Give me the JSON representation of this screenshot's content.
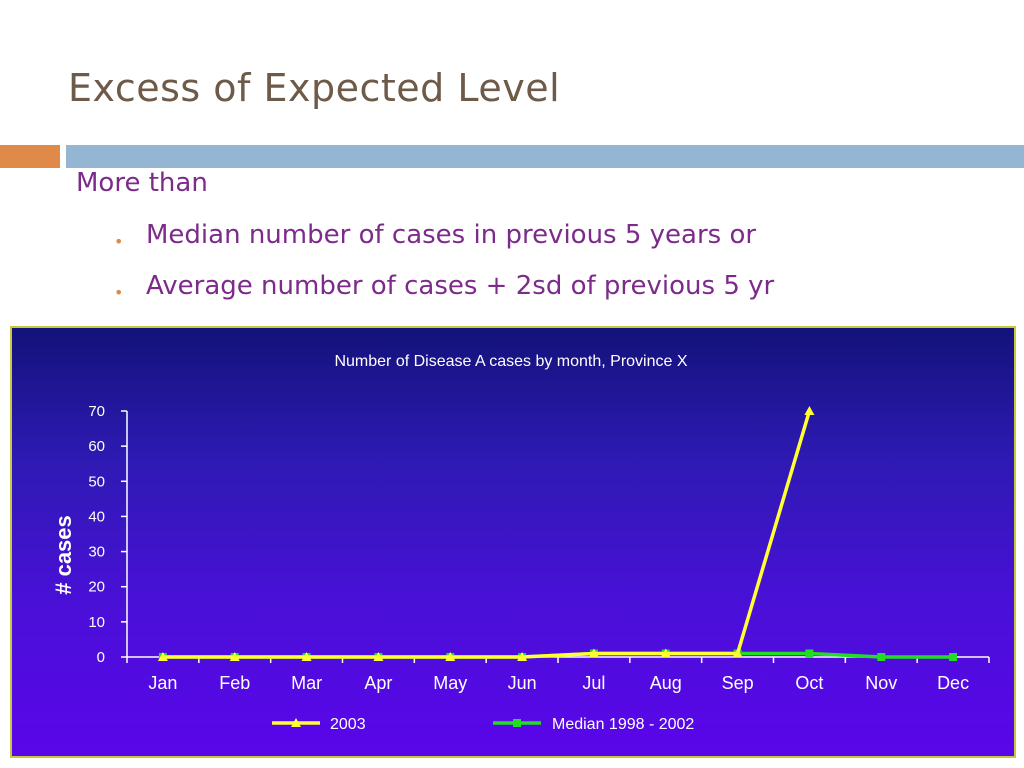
{
  "slide": {
    "title": "Excess of Expected Level",
    "lead": "More than",
    "bullets": [
      "Median number of cases in previous 5 years or",
      "Average number of cases + 2sd of previous 5 yr"
    ]
  },
  "chart_data": {
    "type": "line",
    "title": "Number of Disease A cases by month, Province X",
    "xlabel": "",
    "ylabel": "# cases",
    "ylim": [
      0,
      70
    ],
    "yticks": [
      0,
      10,
      20,
      30,
      40,
      50,
      60,
      70
    ],
    "categories": [
      "Jan",
      "Feb",
      "Mar",
      "Apr",
      "May",
      "Jun",
      "Jul",
      "Aug",
      "Sep",
      "Oct",
      "Nov",
      "Dec"
    ],
    "legend_position": "bottom",
    "series": [
      {
        "name": "2003",
        "color": "#ffff33",
        "marker": "triangle",
        "values": [
          0,
          0,
          0,
          0,
          0,
          0,
          1,
          1,
          1,
          70,
          null,
          null
        ]
      },
      {
        "name": "Median 1998 - 2002",
        "color": "#22dd22",
        "marker": "square",
        "values": [
          0,
          0,
          0,
          0,
          0,
          0,
          1,
          1,
          1,
          1,
          0,
          0
        ]
      }
    ]
  }
}
